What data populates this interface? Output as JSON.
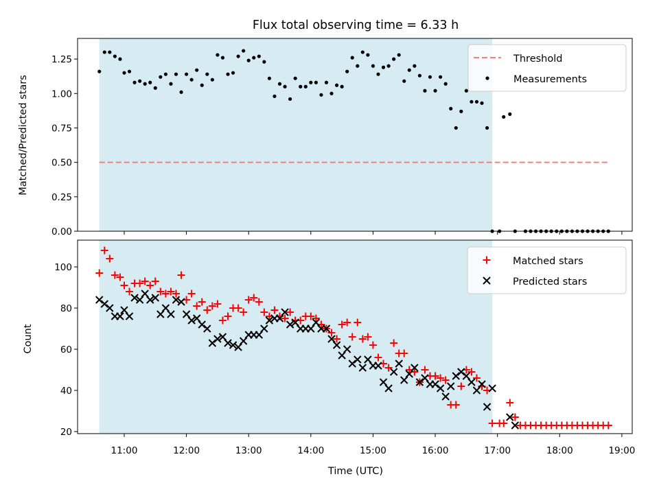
{
  "chart_data": {
    "title": "Flux total observing time = 6.33 h",
    "xlabel": "Time (UTC)",
    "x_ticks": [
      "11:00",
      "12:00",
      "13:00",
      "14:00",
      "15:00",
      "16:00",
      "17:00",
      "18:00",
      "19:00"
    ],
    "xlim": [
      "10:15",
      "19:10"
    ],
    "shaded_span": {
      "start": "10:36",
      "end": "16:55",
      "color": "#add8e6"
    },
    "panels": [
      {
        "type": "scatter",
        "ylabel": "Matched/Predicted stars",
        "ylim": [
          0,
          1.4
        ],
        "y_ticks": [
          "0.00",
          "0.25",
          "0.50",
          "0.75",
          "1.00",
          "1.25"
        ],
        "legend_position": "top-right",
        "series": [
          {
            "name": "Threshold",
            "kind": "hline",
            "value": 0.5,
            "x_start": "10:36",
            "x_end": "18:48",
            "color": "#f08080",
            "style": "dashed"
          },
          {
            "name": "Measurements",
            "kind": "dots",
            "color": "#000000",
            "x": [
              "10:36",
              "10:41",
              "10:46",
              "10:51",
              "10:56",
              "11:00",
              "11:05",
              "11:10",
              "11:15",
              "11:20",
              "11:25",
              "11:30",
              "11:35",
              "11:40",
              "11:45",
              "11:50",
              "11:55",
              "12:00",
              "12:05",
              "12:10",
              "12:15",
              "12:20",
              "12:25",
              "12:30",
              "12:35",
              "12:40",
              "12:45",
              "12:50",
              "12:55",
              "13:00",
              "13:05",
              "13:10",
              "13:15",
              "13:20",
              "13:25",
              "13:30",
              "13:35",
              "13:40",
              "13:45",
              "13:50",
              "13:55",
              "14:00",
              "14:05",
              "14:10",
              "14:15",
              "14:20",
              "14:25",
              "14:30",
              "14:35",
              "14:40",
              "14:45",
              "14:50",
              "14:55",
              "15:00",
              "15:05",
              "15:10",
              "15:15",
              "15:20",
              "15:25",
              "15:30",
              "15:35",
              "15:40",
              "15:45",
              "15:50",
              "15:55",
              "16:00",
              "16:05",
              "16:10",
              "16:15",
              "16:20",
              "16:25",
              "16:30",
              "16:35",
              "16:40",
              "16:45",
              "16:50",
              "16:55",
              "17:02",
              "17:06",
              "17:12",
              "17:17",
              "17:27",
              "17:32",
              "17:37",
              "17:42",
              "17:47",
              "17:52",
              "17:57",
              "18:02",
              "18:07",
              "18:12",
              "18:17",
              "18:22",
              "18:27",
              "18:32",
              "18:37",
              "18:42",
              "18:47"
            ],
            "y": [
              1.16,
              1.3,
              1.3,
              1.27,
              1.25,
              1.15,
              1.16,
              1.08,
              1.09,
              1.07,
              1.08,
              1.04,
              1.12,
              1.14,
              1.07,
              1.14,
              1.01,
              1.14,
              1.1,
              1.17,
              1.06,
              1.14,
              1.1,
              1.28,
              1.26,
              1.14,
              1.15,
              1.27,
              1.31,
              1.24,
              1.26,
              1.27,
              1.23,
              1.11,
              0.98,
              1.07,
              1.05,
              0.96,
              1.11,
              1.05,
              1.05,
              1.08,
              1.08,
              0.99,
              1.08,
              1.0,
              1.06,
              1.05,
              1.16,
              1.26,
              1.2,
              1.3,
              1.28,
              1.2,
              1.14,
              1.19,
              1.2,
              1.25,
              1.28,
              1.09,
              1.17,
              1.2,
              1.13,
              1.02,
              1.12,
              1.02,
              1.12,
              1.07,
              0.89,
              0.75,
              0.87,
              1.02,
              0.94,
              0.94,
              0.93,
              0.75,
              0.0,
              0.0,
              0.83,
              0.85,
              0.0,
              0.0,
              0.0,
              0.0,
              0.0,
              0.0,
              0.0,
              0.0,
              0.0,
              0.0,
              0.0,
              0.0,
              0.0,
              0.0,
              0.0,
              0.0,
              0.0,
              0.0
            ]
          }
        ]
      },
      {
        "type": "scatter",
        "ylabel": "Count",
        "ylim": [
          19,
          113
        ],
        "y_ticks": [
          "20",
          "40",
          "60",
          "80",
          "100"
        ],
        "legend_position": "top-right",
        "series": [
          {
            "name": "Matched stars",
            "marker": "+",
            "color": "#ff0000",
            "x": [
              "10:36",
              "10:41",
              "10:46",
              "10:51",
              "10:56",
              "11:00",
              "11:05",
              "11:10",
              "11:15",
              "11:20",
              "11:25",
              "11:30",
              "11:35",
              "11:40",
              "11:45",
              "11:50",
              "11:55",
              "12:00",
              "12:05",
              "12:10",
              "12:15",
              "12:20",
              "12:25",
              "12:30",
              "12:35",
              "12:40",
              "12:45",
              "12:50",
              "12:55",
              "13:00",
              "13:05",
              "13:10",
              "13:15",
              "13:20",
              "13:25",
              "13:30",
              "13:35",
              "13:40",
              "13:45",
              "13:50",
              "13:55",
              "14:00",
              "14:05",
              "14:10",
              "14:15",
              "14:20",
              "14:25",
              "14:30",
              "14:35",
              "14:40",
              "14:45",
              "14:50",
              "14:55",
              "15:00",
              "15:05",
              "15:10",
              "15:15",
              "15:20",
              "15:25",
              "15:30",
              "15:35",
              "15:40",
              "15:45",
              "15:50",
              "15:55",
              "16:00",
              "16:05",
              "16:10",
              "16:15",
              "16:20",
              "16:25",
              "16:30",
              "16:35",
              "16:40",
              "16:45",
              "16:50",
              "16:55",
              "17:02",
              "17:06",
              "17:12",
              "17:17",
              "17:22",
              "17:27",
              "17:32",
              "17:37",
              "17:42",
              "17:47",
              "17:52",
              "17:57",
              "18:02",
              "18:07",
              "18:12",
              "18:17",
              "18:22",
              "18:27",
              "18:32",
              "18:37",
              "18:42",
              "18:47"
            ],
            "y": [
              97,
              108,
              104,
              96,
              95,
              91,
              88,
              92,
              92,
              93,
              91,
              93,
              88,
              87,
              88,
              87,
              96,
              84,
              87,
              81,
              83,
              79,
              81,
              82,
              74,
              76,
              80,
              80,
              78,
              84,
              85,
              83,
              78,
              76,
              79,
              76,
              75,
              78,
              74,
              74,
              76,
              76,
              75,
              72,
              70,
              68,
              65,
              72,
              73,
              66,
              73,
              65,
              66,
              62,
              56,
              53,
              51,
              63,
              58,
              58,
              50,
              49,
              44,
              50,
              47,
              47,
              46,
              45,
              33,
              33,
              42,
              50,
              49,
              46,
              42,
              40,
              24,
              24,
              24,
              34,
              27,
              23,
              23,
              23,
              23,
              23,
              23,
              23,
              23,
              23,
              23,
              23,
              23,
              23,
              23,
              23,
              23,
              23,
              23
            ]
          },
          {
            "name": "Predicted stars",
            "marker": "x",
            "color": "#000000",
            "x": [
              "10:36",
              "10:41",
              "10:46",
              "10:51",
              "10:56",
              "11:00",
              "11:05",
              "11:10",
              "11:15",
              "11:20",
              "11:25",
              "11:30",
              "11:35",
              "11:40",
              "11:45",
              "11:50",
              "11:55",
              "12:00",
              "12:05",
              "12:10",
              "12:15",
              "12:20",
              "12:25",
              "12:30",
              "12:35",
              "12:40",
              "12:45",
              "12:50",
              "12:55",
              "13:00",
              "13:05",
              "13:10",
              "13:15",
              "13:20",
              "13:25",
              "13:30",
              "13:35",
              "13:40",
              "13:45",
              "13:50",
              "13:55",
              "14:00",
              "14:05",
              "14:10",
              "14:15",
              "14:20",
              "14:25",
              "14:30",
              "14:35",
              "14:40",
              "14:45",
              "14:50",
              "14:55",
              "15:00",
              "15:05",
              "15:10",
              "15:15",
              "15:20",
              "15:25",
              "15:30",
              "15:35",
              "15:40",
              "15:45",
              "15:50",
              "15:55",
              "16:00",
              "16:05",
              "16:10",
              "16:15",
              "16:20",
              "16:25",
              "16:30",
              "16:35",
              "16:40",
              "16:45",
              "16:50",
              "16:55",
              "17:12",
              "17:17"
            ],
            "y": [
              84,
              82,
              80,
              76,
              76,
              79,
              76,
              85,
              84,
              87,
              84,
              85,
              77,
              80,
              77,
              84,
              83,
              77,
              74,
              75,
              72,
              70,
              63,
              65,
              66,
              63,
              62,
              61,
              64,
              67,
              67,
              67,
              70,
              74,
              75,
              75,
              78,
              72,
              73,
              70,
              70,
              70,
              73,
              70,
              70,
              65,
              62,
              57,
              60,
              53,
              55,
              51,
              55,
              52,
              52,
              44,
              41,
              49,
              53,
              45,
              48,
              51,
              44,
              46,
              43,
              43,
              41,
              37,
              42,
              47,
              49,
              47,
              44,
              40,
              43,
              32,
              41,
              27,
              23
            ]
          }
        ]
      }
    ]
  }
}
